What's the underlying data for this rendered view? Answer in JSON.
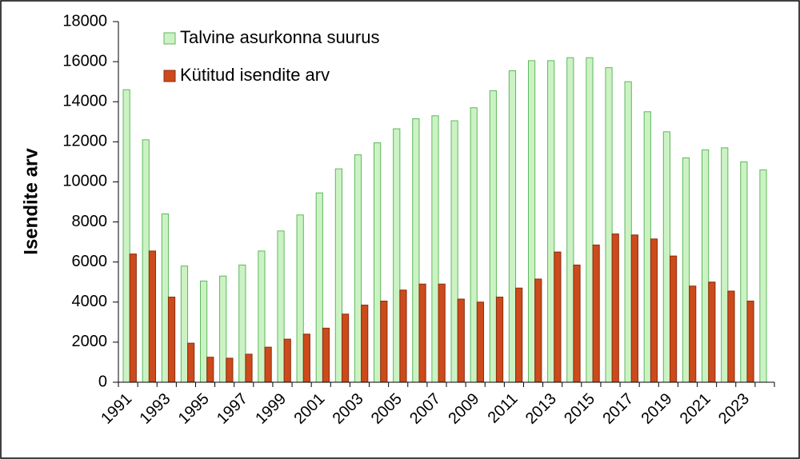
{
  "chart_data": {
    "type": "bar",
    "y_label": "Isendite arv",
    "categories": [
      "1991",
      null,
      "1993",
      null,
      "1995",
      null,
      "1997",
      null,
      "1999",
      null,
      "2001",
      null,
      "2003",
      null,
      "2005",
      null,
      "2007",
      null,
      "2009",
      null,
      "2011",
      null,
      "2013",
      null,
      "2015",
      null,
      "2017",
      null,
      "2019",
      null,
      "2021",
      null,
      "2023",
      null
    ],
    "series": [
      {
        "name": "Talvine asurkonna suurus",
        "color": "#ccf2c4",
        "edge": "#5cb85c",
        "values": [
          14600,
          12100,
          8400,
          5800,
          5050,
          5300,
          5850,
          6550,
          7550,
          8350,
          9450,
          10650,
          11350,
          11950,
          12650,
          13150,
          13300,
          13050,
          13700,
          14550,
          15550,
          16050,
          16050,
          16200,
          16200,
          15700,
          15000,
          13500,
          12500,
          11200,
          11600,
          11700,
          11000,
          10600
        ]
      },
      {
        "name": "Kütitud isendite arv",
        "color": "#cc4a1b",
        "edge": "#8b2e0e",
        "values": [
          6400,
          6550,
          4250,
          1950,
          1250,
          1200,
          1400,
          1750,
          2150,
          2400,
          2700,
          3400,
          3850,
          4050,
          4600,
          4900,
          4900,
          4150,
          4000,
          4250,
          4700,
          5150,
          6500,
          5850,
          6850,
          7400,
          7350,
          7150,
          6300,
          4800,
          5000,
          4550,
          4050,
          null
        ]
      }
    ],
    "ylim": [
      0,
      18000
    ],
    "yticks": [
      0,
      2000,
      4000,
      6000,
      8000,
      10000,
      12000,
      14000,
      16000,
      18000
    ],
    "grid": false
  }
}
